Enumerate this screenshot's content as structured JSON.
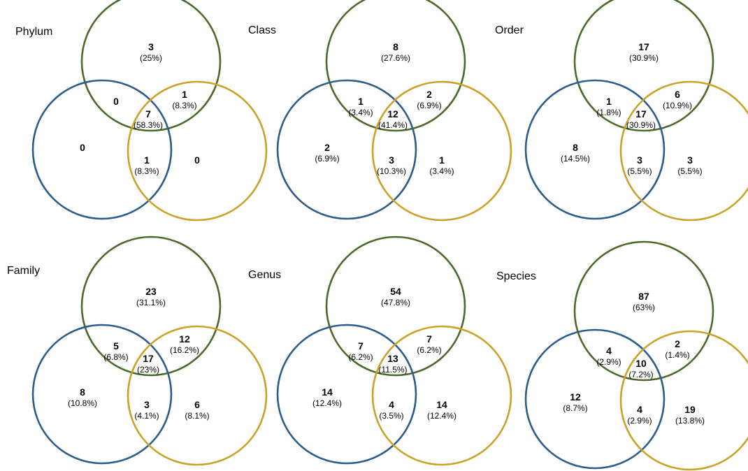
{
  "colors": {
    "blue": "#2b5c8a",
    "green": "#4a6a2a",
    "gold": "#c9a227"
  },
  "panels": [
    {
      "title": "Phylum",
      "regions": {
        "green_only": {
          "count": "3",
          "pct": "(25%)"
        },
        "blue_green": {
          "count": "0",
          "pct": ""
        },
        "green_gold": {
          "count": "1",
          "pct": "(8.3%)"
        },
        "center": {
          "count": "7",
          "pct": "(58.3%)"
        },
        "blue_only": {
          "count": "0",
          "pct": ""
        },
        "blue_gold": {
          "count": "1",
          "pct": "(8.3%)"
        },
        "gold_only": {
          "count": "0",
          "pct": ""
        }
      }
    },
    {
      "title": "Class",
      "regions": {
        "green_only": {
          "count": "8",
          "pct": "(27.6%)"
        },
        "blue_green": {
          "count": "1",
          "pct": "(3.4%)"
        },
        "green_gold": {
          "count": "2",
          "pct": "(6.9%)"
        },
        "center": {
          "count": "12",
          "pct": "(41.4%)"
        },
        "blue_only": {
          "count": "2",
          "pct": "(6.9%)"
        },
        "blue_gold": {
          "count": "3",
          "pct": "(10.3%)"
        },
        "gold_only": {
          "count": "1",
          "pct": "(3.4%)"
        }
      }
    },
    {
      "title": "Order",
      "regions": {
        "green_only": {
          "count": "17",
          "pct": "(30.9%)"
        },
        "blue_green": {
          "count": "1",
          "pct": "(1.8%)"
        },
        "green_gold": {
          "count": "6",
          "pct": "(10.9%)"
        },
        "center": {
          "count": "17",
          "pct": "(30.9%)"
        },
        "blue_only": {
          "count": "8",
          "pct": "(14.5%)"
        },
        "blue_gold": {
          "count": "3",
          "pct": "(5.5%)"
        },
        "gold_only": {
          "count": "3",
          "pct": "(5.5%)"
        }
      }
    },
    {
      "title": "Family",
      "regions": {
        "green_only": {
          "count": "23",
          "pct": "(31.1%)"
        },
        "blue_green": {
          "count": "5",
          "pct": "(6.8%)"
        },
        "green_gold": {
          "count": "12",
          "pct": "(16.2%)"
        },
        "center": {
          "count": "17",
          "pct": "(23%)"
        },
        "blue_only": {
          "count": "8",
          "pct": "(10.8%)"
        },
        "blue_gold": {
          "count": "3",
          "pct": "(4.1%)"
        },
        "gold_only": {
          "count": "6",
          "pct": "(8.1%)"
        }
      }
    },
    {
      "title": "Genus",
      "regions": {
        "green_only": {
          "count": "54",
          "pct": "(47.8%)"
        },
        "blue_green": {
          "count": "7",
          "pct": "(6.2%)"
        },
        "green_gold": {
          "count": "7",
          "pct": "(6.2%)"
        },
        "center": {
          "count": "13",
          "pct": "(11.5%)"
        },
        "blue_only": {
          "count": "14",
          "pct": "(12.4%)"
        },
        "blue_gold": {
          "count": "4",
          "pct": "(3.5%)"
        },
        "gold_only": {
          "count": "14",
          "pct": "(12.4%)"
        }
      }
    },
    {
      "title": "Species",
      "regions": {
        "green_only": {
          "count": "87",
          "pct": "(63%)"
        },
        "blue_green": {
          "count": "4",
          "pct": "(2.9%)"
        },
        "green_gold": {
          "count": "2",
          "pct": "(1.4%)"
        },
        "center": {
          "count": "10",
          "pct": "(7.2%)"
        },
        "blue_only": {
          "count": "12",
          "pct": "(8.7%)"
        },
        "blue_gold": {
          "count": "4",
          "pct": "(2.9%)"
        },
        "gold_only": {
          "count": "19",
          "pct": "(13.8%)"
        }
      }
    }
  ]
}
